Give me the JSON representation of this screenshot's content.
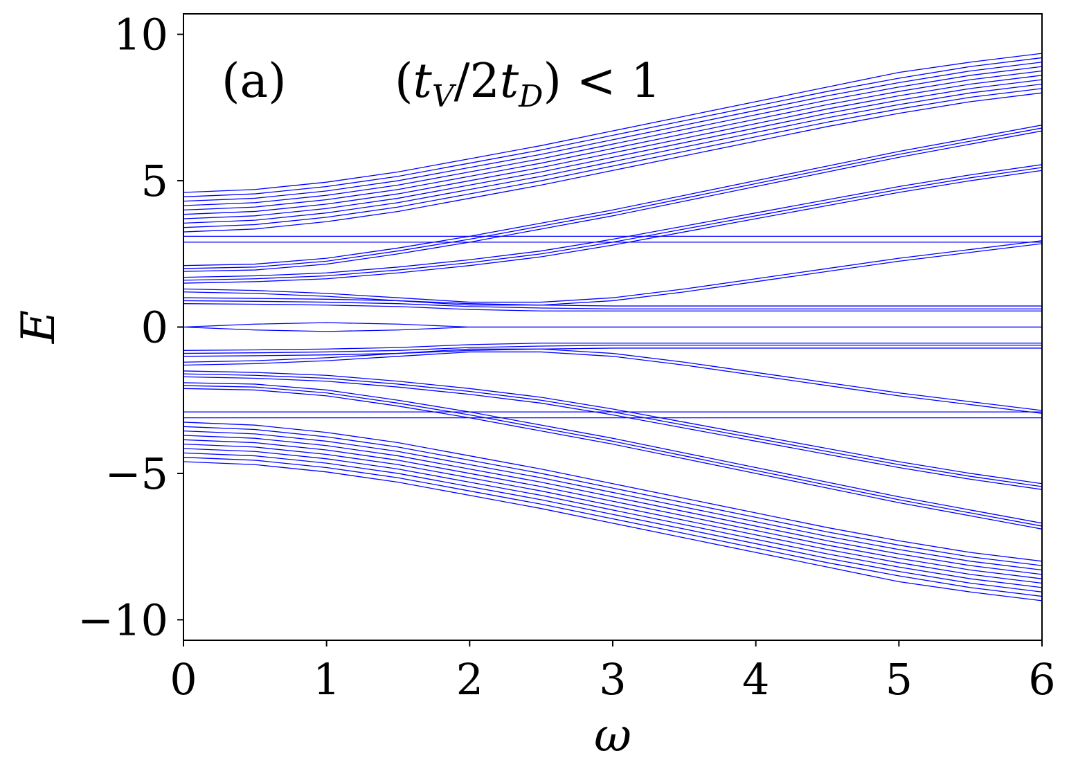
{
  "chart_data": {
    "type": "line",
    "xlabel": "ω",
    "ylabel": "E",
    "xlim": [
      0,
      6
    ],
    "ylim": [
      -10.7,
      10.7
    ],
    "xticks": [
      0,
      1,
      2,
      3,
      4,
      5,
      6
    ],
    "xtick_labels": [
      "0",
      "1",
      "2",
      "3",
      "4",
      "5",
      "6"
    ],
    "yticks": [
      10,
      5,
      0,
      -5,
      -10
    ],
    "ytick_labels": [
      "10",
      "5",
      "0",
      "−5",
      "−10"
    ],
    "annotations": [
      {
        "id": "panel",
        "text": "(a)"
      },
      {
        "id": "condition",
        "text": "(t_V/2t_D) < 1"
      }
    ],
    "line_color": "#0000ff",
    "grid": false,
    "legend": "none",
    "x": [
      0,
      0.5,
      1,
      1.5,
      2,
      2.5,
      3,
      3.5,
      4,
      4.5,
      5,
      5.5,
      6
    ],
    "series": [
      {
        "values": [
          4.6,
          4.7,
          4.95,
          5.3,
          5.75,
          6.2,
          6.7,
          7.2,
          7.7,
          8.2,
          8.7,
          9.05,
          9.35
        ]
      },
      {
        "values": [
          4.45,
          4.55,
          4.8,
          5.15,
          5.6,
          6.05,
          6.55,
          7.05,
          7.55,
          8.05,
          8.5,
          8.9,
          9.2
        ]
      },
      {
        "values": [
          4.3,
          4.4,
          4.65,
          5.0,
          5.45,
          5.9,
          6.4,
          6.9,
          7.4,
          7.9,
          8.35,
          8.75,
          9.05
        ]
      },
      {
        "values": [
          4.15,
          4.25,
          4.5,
          4.85,
          5.3,
          5.75,
          6.25,
          6.75,
          7.25,
          7.75,
          8.2,
          8.6,
          8.9
        ]
      },
      {
        "values": [
          4.0,
          4.1,
          4.35,
          4.7,
          5.15,
          5.6,
          6.1,
          6.6,
          7.1,
          7.6,
          8.05,
          8.45,
          8.75
        ]
      },
      {
        "values": [
          3.85,
          3.95,
          4.2,
          4.55,
          5.0,
          5.45,
          5.95,
          6.45,
          6.95,
          7.45,
          7.9,
          8.3,
          8.6
        ]
      },
      {
        "values": [
          3.7,
          3.8,
          4.05,
          4.4,
          4.85,
          5.3,
          5.8,
          6.3,
          6.8,
          7.3,
          7.75,
          8.15,
          8.45
        ]
      },
      {
        "values": [
          3.55,
          3.65,
          3.9,
          4.25,
          4.7,
          5.15,
          5.65,
          6.15,
          6.65,
          7.15,
          7.6,
          8.0,
          8.3
        ]
      },
      {
        "values": [
          3.4,
          3.5,
          3.75,
          4.1,
          4.55,
          5.0,
          5.5,
          6.0,
          6.5,
          7.0,
          7.45,
          7.85,
          8.15
        ]
      },
      {
        "values": [
          3.25,
          3.35,
          3.6,
          3.95,
          4.4,
          4.85,
          5.35,
          5.85,
          6.35,
          6.85,
          7.3,
          7.7,
          8.0
        ]
      },
      {
        "values": [
          2.1,
          2.15,
          2.35,
          2.7,
          3.1,
          3.55,
          4.0,
          4.5,
          5.0,
          5.5,
          6.0,
          6.45,
          6.9
        ]
      },
      {
        "values": [
          2.0,
          2.05,
          2.25,
          2.6,
          3.0,
          3.45,
          3.9,
          4.4,
          4.9,
          5.4,
          5.9,
          6.35,
          6.8
        ]
      },
      {
        "values": [
          1.9,
          1.95,
          2.15,
          2.5,
          2.9,
          3.35,
          3.8,
          4.3,
          4.8,
          5.3,
          5.8,
          6.25,
          6.7
        ]
      },
      {
        "values": [
          1.7,
          1.75,
          1.85,
          2.05,
          2.3,
          2.6,
          3.0,
          3.45,
          3.9,
          4.35,
          4.8,
          5.2,
          5.55
        ]
      },
      {
        "values": [
          1.6,
          1.65,
          1.75,
          1.95,
          2.2,
          2.5,
          2.9,
          3.35,
          3.8,
          4.25,
          4.7,
          5.1,
          5.45
        ]
      },
      {
        "values": [
          1.5,
          1.55,
          1.65,
          1.85,
          2.1,
          2.4,
          2.8,
          3.25,
          3.7,
          4.15,
          4.6,
          5.0,
          5.35
        ]
      },
      {
        "values": [
          3.1,
          3.1,
          3.1,
          3.1,
          3.1,
          3.1,
          3.1,
          3.1,
          3.1,
          3.1,
          3.1,
          3.1,
          3.1
        ]
      },
      {
        "values": [
          2.9,
          2.9,
          2.9,
          2.9,
          2.9,
          2.9,
          2.9,
          2.9,
          2.9,
          2.9,
          2.9,
          2.9,
          2.9
        ]
      },
      {
        "values": [
          1.3,
          1.25,
          1.15,
          1.0,
          0.85,
          0.85,
          1.0,
          1.3,
          1.65,
          2.0,
          2.35,
          2.65,
          2.95
        ]
      },
      {
        "values": [
          1.2,
          1.15,
          1.05,
          0.9,
          0.75,
          0.75,
          0.9,
          1.2,
          1.55,
          1.9,
          2.25,
          2.55,
          2.85
        ]
      },
      {
        "values": [
          1.0,
          0.98,
          0.95,
          0.9,
          0.8,
          0.75,
          0.72,
          0.72,
          0.72,
          0.72,
          0.72,
          0.72,
          0.72
        ]
      },
      {
        "values": [
          0.9,
          0.88,
          0.85,
          0.8,
          0.7,
          0.65,
          0.62,
          0.62,
          0.62,
          0.62,
          0.62,
          0.62,
          0.62
        ]
      },
      {
        "values": [
          0.8,
          0.78,
          0.75,
          0.7,
          0.6,
          0.55,
          0.55,
          0.55,
          0.55,
          0.55,
          0.55,
          0.55,
          0.55
        ]
      },
      {
        "values": [
          0.0,
          0.1,
          0.15,
          0.1,
          0.0,
          0.0,
          0.0,
          0.0,
          0.0,
          0.0,
          0.0,
          0.0,
          0.0
        ]
      },
      {
        "values": [
          0.0,
          -0.1,
          -0.15,
          -0.1,
          0.0,
          0.0,
          0.0,
          0.0,
          0.0,
          0.0,
          0.0,
          0.0,
          0.0
        ]
      },
      {
        "values": [
          -0.8,
          -0.78,
          -0.75,
          -0.7,
          -0.6,
          -0.55,
          -0.55,
          -0.55,
          -0.55,
          -0.55,
          -0.55,
          -0.55,
          -0.55
        ]
      },
      {
        "values": [
          -0.9,
          -0.88,
          -0.85,
          -0.8,
          -0.7,
          -0.65,
          -0.62,
          -0.62,
          -0.62,
          -0.62,
          -0.62,
          -0.62,
          -0.62
        ]
      },
      {
        "values": [
          -1.0,
          -0.98,
          -0.95,
          -0.9,
          -0.8,
          -0.75,
          -0.72,
          -0.72,
          -0.72,
          -0.72,
          -0.72,
          -0.72,
          -0.72
        ]
      },
      {
        "values": [
          -1.2,
          -1.15,
          -1.05,
          -0.9,
          -0.75,
          -0.75,
          -0.9,
          -1.2,
          -1.55,
          -1.9,
          -2.25,
          -2.55,
          -2.85
        ]
      },
      {
        "values": [
          -1.3,
          -1.25,
          -1.15,
          -1.0,
          -0.85,
          -0.85,
          -1.0,
          -1.3,
          -1.65,
          -2.0,
          -2.35,
          -2.65,
          -2.95
        ]
      },
      {
        "values": [
          -2.9,
          -2.9,
          -2.9,
          -2.9,
          -2.9,
          -2.9,
          -2.9,
          -2.9,
          -2.9,
          -2.9,
          -2.9,
          -2.9,
          -2.9
        ]
      },
      {
        "values": [
          -3.1,
          -3.1,
          -3.1,
          -3.1,
          -3.1,
          -3.1,
          -3.1,
          -3.1,
          -3.1,
          -3.1,
          -3.1,
          -3.1,
          -3.1
        ]
      },
      {
        "values": [
          -1.5,
          -1.55,
          -1.65,
          -1.85,
          -2.1,
          -2.4,
          -2.8,
          -3.25,
          -3.7,
          -4.15,
          -4.6,
          -5.0,
          -5.35
        ]
      },
      {
        "values": [
          -1.6,
          -1.65,
          -1.75,
          -1.95,
          -2.2,
          -2.5,
          -2.9,
          -3.35,
          -3.8,
          -4.25,
          -4.7,
          -5.1,
          -5.45
        ]
      },
      {
        "values": [
          -1.7,
          -1.75,
          -1.85,
          -2.05,
          -2.3,
          -2.6,
          -3.0,
          -3.45,
          -3.9,
          -4.35,
          -4.8,
          -5.2,
          -5.55
        ]
      },
      {
        "values": [
          -1.9,
          -1.95,
          -2.15,
          -2.5,
          -2.9,
          -3.35,
          -3.8,
          -4.3,
          -4.8,
          -5.3,
          -5.8,
          -6.25,
          -6.7
        ]
      },
      {
        "values": [
          -2.0,
          -2.05,
          -2.25,
          -2.6,
          -3.0,
          -3.45,
          -3.9,
          -4.4,
          -4.9,
          -5.4,
          -5.9,
          -6.35,
          -6.8
        ]
      },
      {
        "values": [
          -2.1,
          -2.15,
          -2.35,
          -2.7,
          -3.1,
          -3.55,
          -4.0,
          -4.5,
          -5.0,
          -5.5,
          -6.0,
          -6.45,
          -6.9
        ]
      },
      {
        "values": [
          -3.25,
          -3.35,
          -3.6,
          -3.95,
          -4.4,
          -4.85,
          -5.35,
          -5.85,
          -6.35,
          -6.85,
          -7.3,
          -7.7,
          -8.0
        ]
      },
      {
        "values": [
          -3.4,
          -3.5,
          -3.75,
          -4.1,
          -4.55,
          -5.0,
          -5.5,
          -6.0,
          -6.5,
          -7.0,
          -7.45,
          -7.85,
          -8.15
        ]
      },
      {
        "values": [
          -3.55,
          -3.65,
          -3.9,
          -4.25,
          -4.7,
          -5.15,
          -5.65,
          -6.15,
          -6.65,
          -7.15,
          -7.6,
          -8.0,
          -8.3
        ]
      },
      {
        "values": [
          -3.7,
          -3.8,
          -4.05,
          -4.4,
          -4.85,
          -5.3,
          -5.8,
          -6.3,
          -6.8,
          -7.3,
          -7.75,
          -8.15,
          -8.45
        ]
      },
      {
        "values": [
          -3.85,
          -3.95,
          -4.2,
          -4.55,
          -5.0,
          -5.45,
          -5.95,
          -6.45,
          -6.95,
          -7.45,
          -7.9,
          -8.3,
          -8.6
        ]
      },
      {
        "values": [
          -4.0,
          -4.1,
          -4.35,
          -4.7,
          -5.15,
          -5.6,
          -6.1,
          -6.6,
          -7.1,
          -7.6,
          -8.05,
          -8.45,
          -8.75
        ]
      },
      {
        "values": [
          -4.15,
          -4.25,
          -4.5,
          -4.85,
          -5.3,
          -5.75,
          -6.25,
          -6.75,
          -7.25,
          -7.75,
          -8.2,
          -8.6,
          -8.9
        ]
      },
      {
        "values": [
          -4.3,
          -4.4,
          -4.65,
          -5.0,
          -5.45,
          -5.9,
          -6.4,
          -6.9,
          -7.4,
          -7.9,
          -8.35,
          -8.75,
          -9.05
        ]
      },
      {
        "values": [
          -4.45,
          -4.55,
          -4.8,
          -5.15,
          -5.6,
          -6.05,
          -6.55,
          -7.05,
          -7.55,
          -8.05,
          -8.5,
          -8.9,
          -9.2
        ]
      },
      {
        "values": [
          -4.6,
          -4.7,
          -4.95,
          -5.3,
          -5.75,
          -6.2,
          -6.7,
          -7.2,
          -7.7,
          -8.2,
          -8.7,
          -9.05,
          -9.35
        ]
      }
    ]
  }
}
